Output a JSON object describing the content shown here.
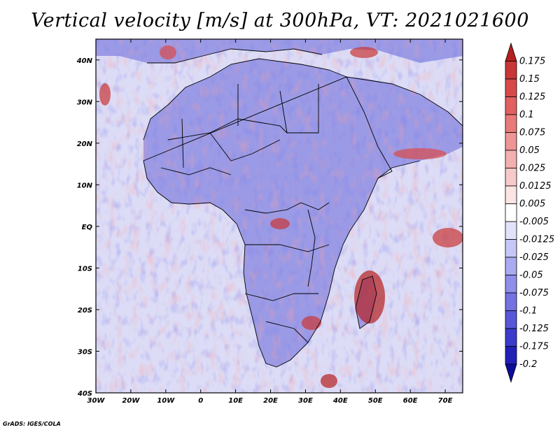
{
  "title": "Vertical velocity [m/s] at 300hPa, VT: 2021021600",
  "credit": "GrADS: IGES/COLA",
  "axes": {
    "lat_ticks": [
      "40N",
      "30N",
      "20N",
      "10N",
      "EQ",
      "10S",
      "20S",
      "30S",
      "40S"
    ],
    "lon_ticks": [
      "30W",
      "20W",
      "10W",
      "0",
      "10E",
      "20E",
      "30E",
      "40E",
      "50E",
      "60E",
      "70E"
    ],
    "lon_range": [
      -30,
      75
    ],
    "lat_range": [
      -40,
      45
    ]
  },
  "colorbar": {
    "labels": [
      "0.175",
      "0.15",
      "0.125",
      "0.1",
      "0.075",
      "0.05",
      "0.025",
      "0.0125",
      "0.005",
      "-0.005",
      "-0.0125",
      "-0.025",
      "-0.05",
      "-0.075",
      "-0.1",
      "-0.125",
      "-0.175",
      "-0.2"
    ],
    "colors": [
      "#b51f1f",
      "#c93636",
      "#d84a4a",
      "#e36060",
      "#e97a7a",
      "#ee9595",
      "#f3b0b0",
      "#f7caca",
      "#fbe4e4",
      "#ffffff",
      "#e2e2fb",
      "#c7c7f6",
      "#aaaaf0",
      "#8f8fea",
      "#7373e2",
      "#5757d8",
      "#3b3bcc",
      "#2121b8",
      "#0c0c9a"
    ]
  },
  "map": {
    "land_color": "#9a9ae6",
    "ocean_color": "#dcdcf6"
  }
}
